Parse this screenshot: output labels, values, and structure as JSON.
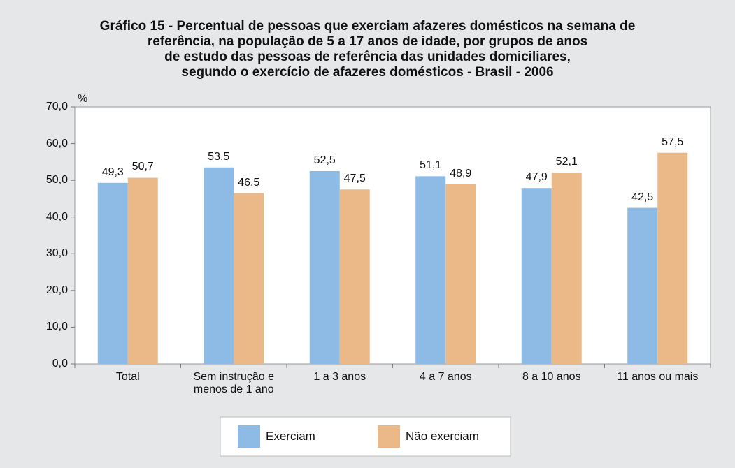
{
  "chart_data": {
    "type": "bar",
    "title": [
      "Gráfico 15 - Percentual de pessoas que exerciam afazeres domésticos na semana de",
      "referência, na população de 5 a 17 anos de idade, por grupos de anos",
      "de estudo das pessoas de referência das unidades domiciliares,",
      "segundo o exercício de afazeres domésticos - Brasil - 2006"
    ],
    "y_label": "%",
    "categories": [
      "Total",
      "Sem instrução e menos de 1 ano",
      "1 a 3 anos",
      "4 a 7 anos",
      "8 a 10 anos",
      "11 anos ou mais"
    ],
    "series": [
      {
        "name": "Exerciam",
        "color": "#8dbbe6",
        "values": [
          49.3,
          53.5,
          52.5,
          51.1,
          47.9,
          42.5
        ],
        "value_labels": [
          "49,3",
          "53,5",
          "52,5",
          "51,1",
          "47,9",
          "42,5"
        ]
      },
      {
        "name": "Não exerciam",
        "color": "#ebb987",
        "values": [
          50.7,
          46.5,
          47.5,
          48.9,
          52.1,
          57.5
        ],
        "value_labels": [
          "50,7",
          "46,5",
          "47,5",
          "48,9",
          "52,1",
          "57,5"
        ]
      }
    ],
    "ylim": [
      0,
      70
    ],
    "yticks": [
      {
        "value": 0,
        "label": "0,0"
      },
      {
        "value": 10,
        "label": "10,0"
      },
      {
        "value": 20,
        "label": "20,0"
      },
      {
        "value": 30,
        "label": "30,0"
      },
      {
        "value": 40,
        "label": "40,0"
      },
      {
        "value": 50,
        "label": "50,0"
      },
      {
        "value": 60,
        "label": "60,0"
      },
      {
        "value": 70,
        "label": "70,0"
      }
    ],
    "grid": false
  }
}
